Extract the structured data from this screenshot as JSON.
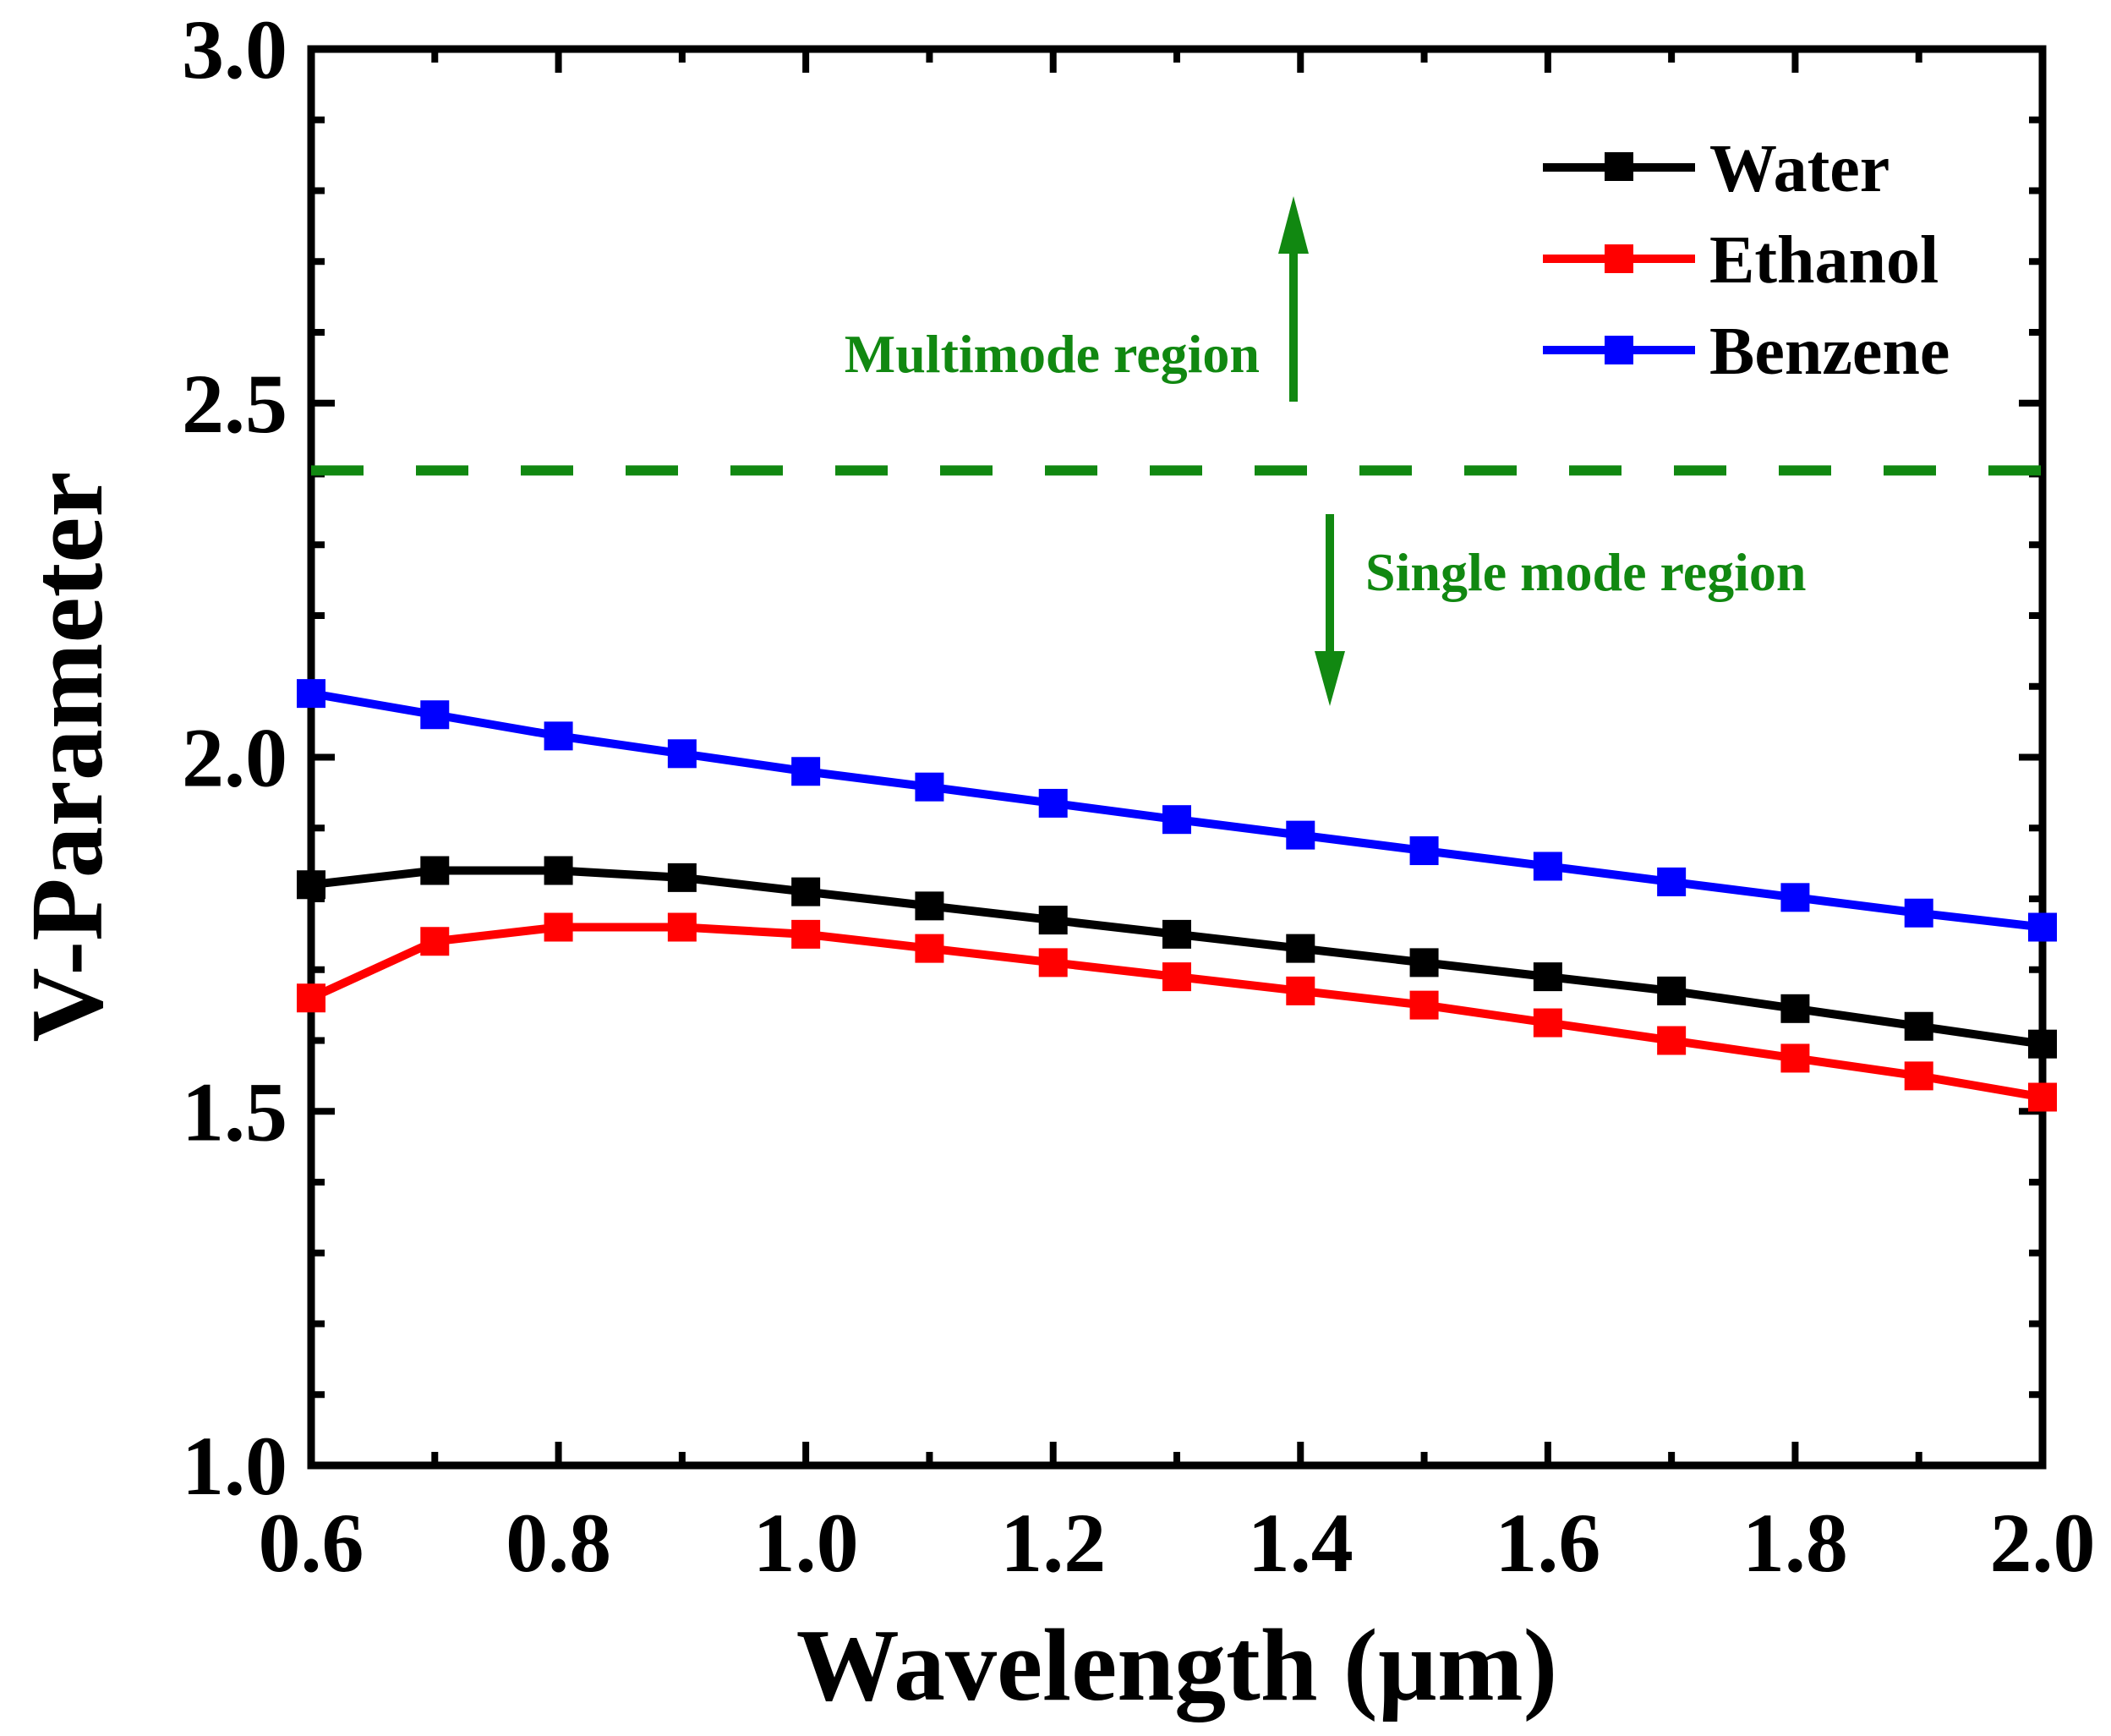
{
  "chart_data": {
    "type": "line",
    "title": "",
    "xlabel": "Wavelength (µm)",
    "ylabel": "V-Parameter",
    "xlim": [
      0.6,
      2.0
    ],
    "ylim": [
      1.0,
      3.0
    ],
    "xticks": [
      "0.6",
      "0.8",
      "1.0",
      "1.2",
      "1.4",
      "1.6",
      "1.8",
      "2.0"
    ],
    "yticks": [
      "1.0",
      "1.5",
      "2.0",
      "2.5",
      "3.0"
    ],
    "x": [
      0.6,
      0.7,
      0.8,
      0.9,
      1.0,
      1.1,
      1.2,
      1.3,
      1.4,
      1.5,
      1.6,
      1.7,
      1.8,
      1.9,
      2.0
    ],
    "series": [
      {
        "name": "Water",
        "color": "#000000",
        "marker": "square",
        "values": [
          1.82,
          1.84,
          1.84,
          1.83,
          1.81,
          1.79,
          1.77,
          1.75,
          1.73,
          1.71,
          1.69,
          1.67,
          1.645,
          1.62,
          1.595
        ]
      },
      {
        "name": "Ethanol",
        "color": "#ff0000",
        "marker": "square",
        "values": [
          1.66,
          1.74,
          1.76,
          1.76,
          1.75,
          1.73,
          1.71,
          1.69,
          1.67,
          1.65,
          1.625,
          1.6,
          1.575,
          1.55,
          1.52
        ]
      },
      {
        "name": "Benzene",
        "color": "#0000ff",
        "marker": "square",
        "values": [
          2.09,
          2.06,
          2.03,
          2.005,
          1.98,
          1.958,
          1.935,
          1.912,
          1.89,
          1.868,
          1.846,
          1.824,
          1.802,
          1.78,
          1.76
        ]
      }
    ],
    "threshold": {
      "value": 2.405,
      "style": "dashed",
      "color": "#118811"
    },
    "annotations": [
      {
        "text": "Multimode region",
        "arrow": "up",
        "color": "#118811"
      },
      {
        "text": "Single mode region",
        "arrow": "down",
        "color": "#118811"
      }
    ],
    "legend_position": "top-right",
    "grid": false
  }
}
